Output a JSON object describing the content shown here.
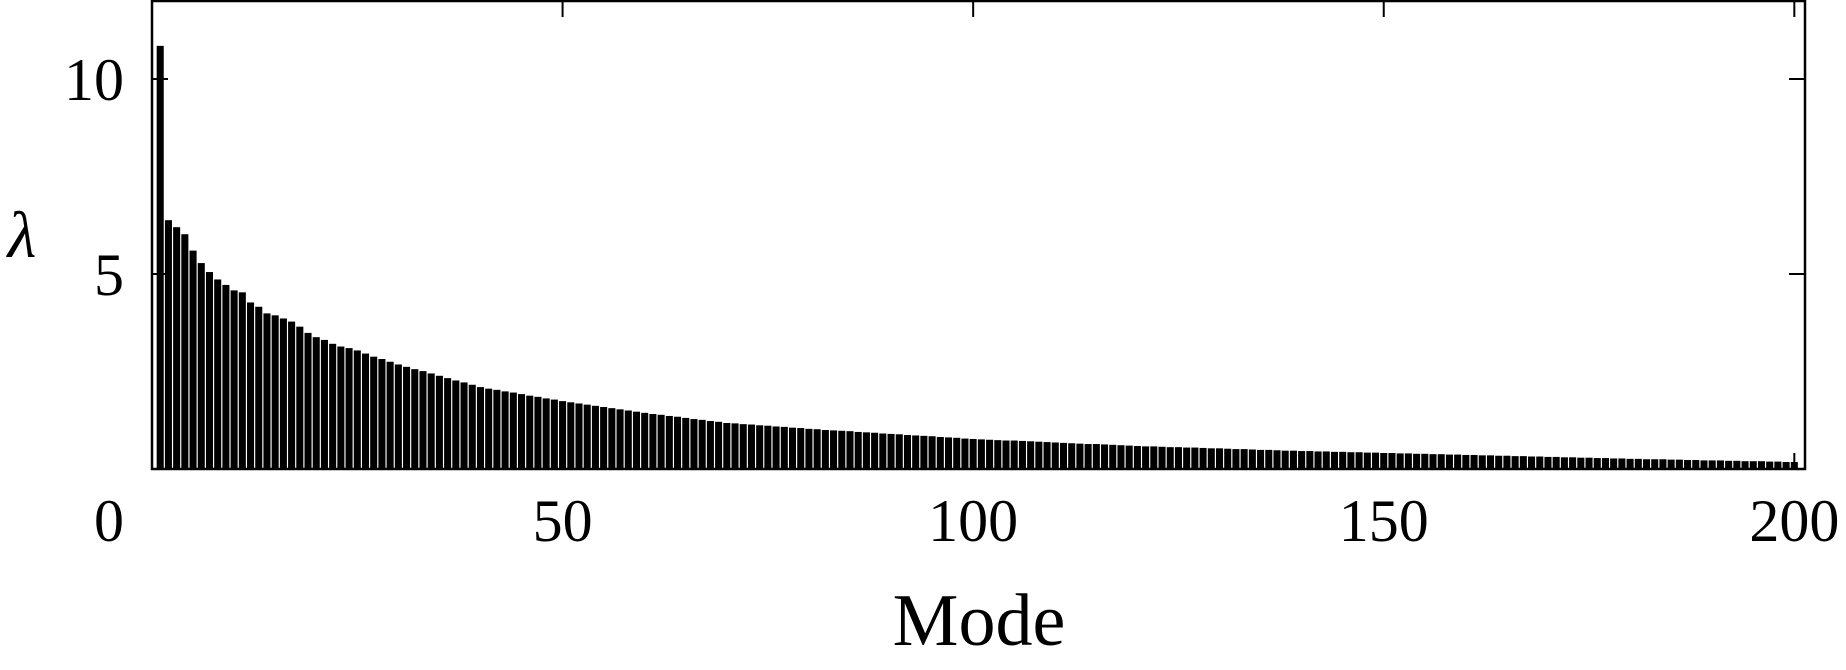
{
  "chart_data": {
    "type": "bar",
    "title": "",
    "xlabel": "Mode",
    "ylabel": "λ",
    "xlim": [
      0,
      201.3
    ],
    "ylim": [
      0,
      12
    ],
    "xticks": [
      0,
      50,
      100,
      150,
      200
    ],
    "xtick_labels": [
      "0",
      "50",
      "100",
      "150",
      "200"
    ],
    "yticks": [
      5,
      10
    ],
    "ytick_labels": [
      "5",
      "10"
    ],
    "grid": false,
    "legend": "none",
    "bar_color": "#000000",
    "x_start": 1,
    "values": [
      10.85,
      6.38,
      6.2,
      6.02,
      5.6,
      5.28,
      5.05,
      4.86,
      4.72,
      4.58,
      4.53,
      4.27,
      4.16,
      3.99,
      3.94,
      3.86,
      3.78,
      3.65,
      3.49,
      3.38,
      3.31,
      3.21,
      3.14,
      3.1,
      3.04,
      2.96,
      2.88,
      2.82,
      2.75,
      2.68,
      2.62,
      2.56,
      2.51,
      2.45,
      2.39,
      2.33,
      2.27,
      2.22,
      2.16,
      2.1,
      2.06,
      2.03,
      1.99,
      1.96,
      1.92,
      1.88,
      1.85,
      1.81,
      1.78,
      1.74,
      1.71,
      1.68,
      1.65,
      1.62,
      1.59,
      1.56,
      1.53,
      1.5,
      1.47,
      1.44,
      1.41,
      1.39,
      1.36,
      1.34,
      1.31,
      1.28,
      1.26,
      1.23,
      1.21,
      1.18,
      1.17,
      1.15,
      1.14,
      1.12,
      1.11,
      1.09,
      1.08,
      1.06,
      1.05,
      1.03,
      1.02,
      1.0,
      0.99,
      0.98,
      0.97,
      0.95,
      0.94,
      0.93,
      0.91,
      0.9,
      0.89,
      0.87,
      0.86,
      0.85,
      0.84,
      0.82,
      0.81,
      0.8,
      0.78,
      0.77,
      0.76,
      0.75,
      0.74,
      0.73,
      0.73,
      0.72,
      0.71,
      0.7,
      0.69,
      0.68,
      0.67,
      0.66,
      0.65,
      0.64,
      0.64,
      0.63,
      0.62,
      0.61,
      0.6,
      0.59,
      0.58,
      0.58,
      0.57,
      0.56,
      0.56,
      0.55,
      0.55,
      0.54,
      0.53,
      0.53,
      0.52,
      0.51,
      0.51,
      0.5,
      0.49,
      0.49,
      0.48,
      0.47,
      0.47,
      0.46,
      0.46,
      0.45,
      0.45,
      0.44,
      0.44,
      0.43,
      0.43,
      0.42,
      0.42,
      0.41,
      0.41,
      0.4,
      0.4,
      0.39,
      0.39,
      0.38,
      0.38,
      0.37,
      0.37,
      0.36,
      0.36,
      0.35,
      0.35,
      0.34,
      0.34,
      0.33,
      0.33,
      0.32,
      0.32,
      0.31,
      0.31,
      0.3,
      0.3,
      0.29,
      0.29,
      0.28,
      0.28,
      0.27,
      0.27,
      0.26,
      0.26,
      0.25,
      0.25,
      0.25,
      0.24,
      0.24,
      0.23,
      0.23,
      0.22,
      0.22,
      0.22,
      0.21,
      0.21,
      0.2,
      0.2,
      0.2,
      0.19,
      0.19,
      0.18,
      0.18
    ]
  }
}
